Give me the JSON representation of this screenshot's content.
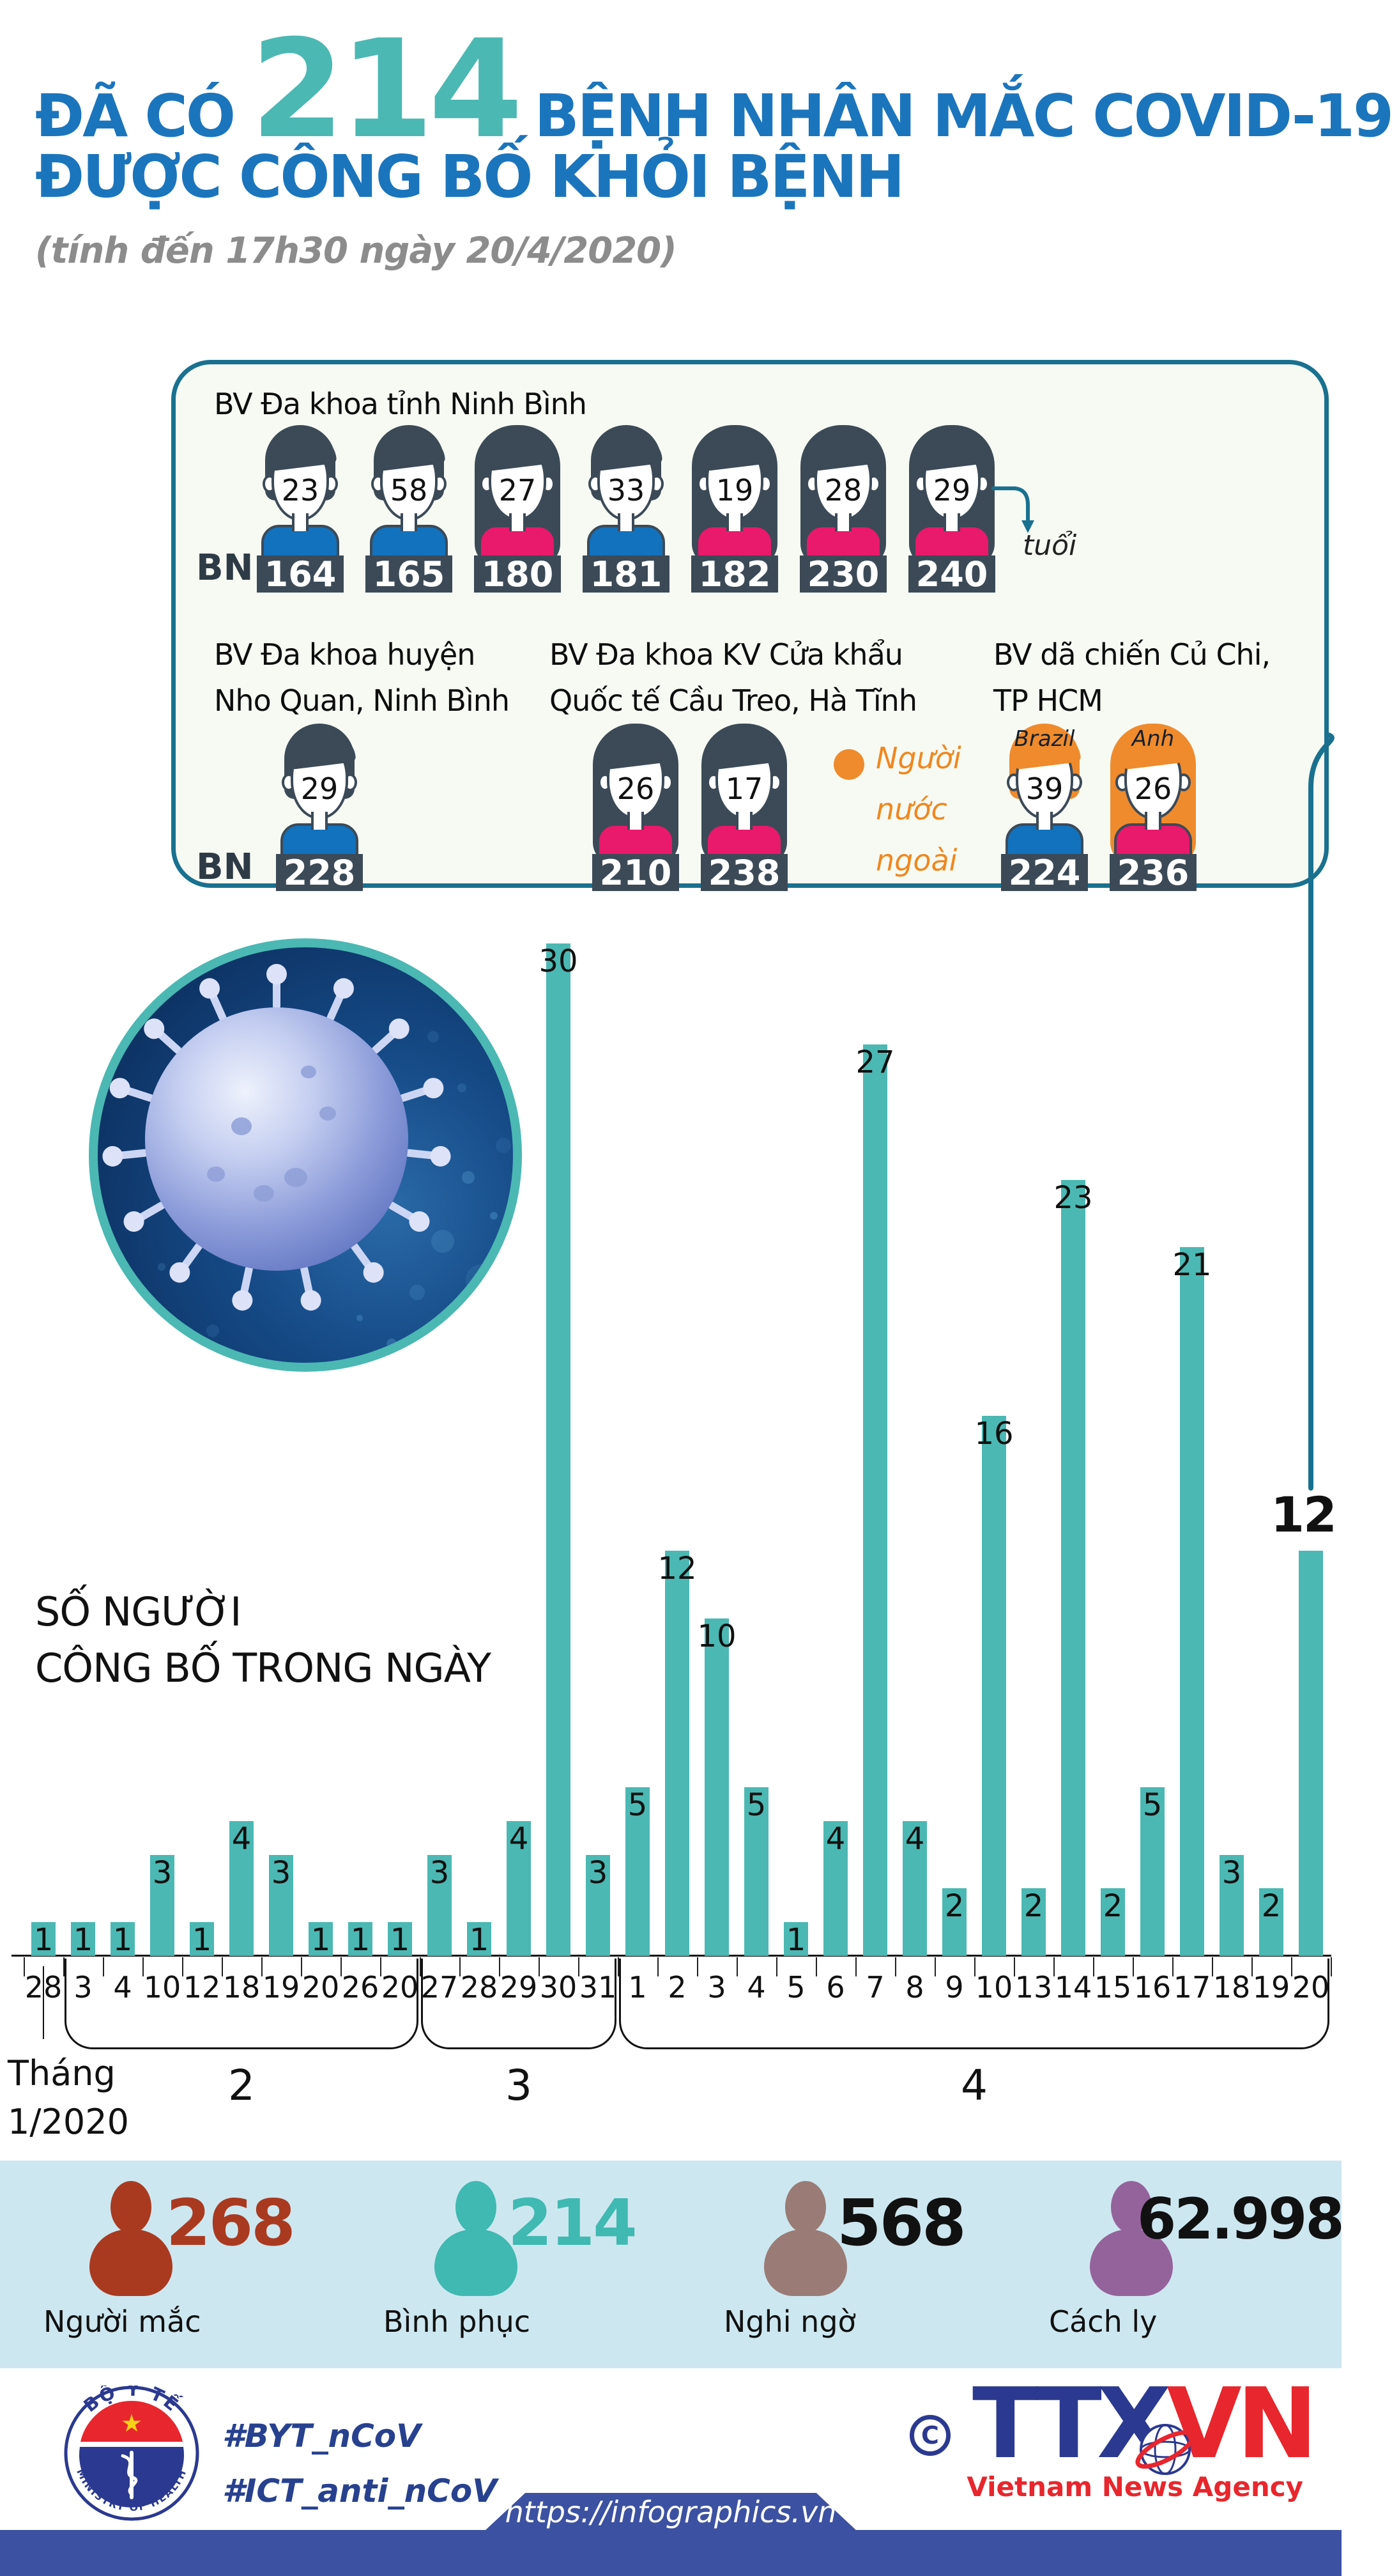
{
  "header": {
    "prefix": "ĐÃ CÓ",
    "highlight": "214",
    "suffix": "BỆNH NHÂN MẮC COVID-19",
    "line2": "ĐƯỢC CÔNG BỐ KHỎI BỆNH",
    "subtitle": "(tính đến 17h30 ngày 20/4/2020)"
  },
  "colors": {
    "accent_teal": "#4BB8B3",
    "title_blue": "#1B75BC",
    "box_border": "#19718F",
    "bar": "#4BB8B3",
    "slate": "#3C4A57",
    "shirt_blue": "#1272BD",
    "shirt_pink": "#E9196B",
    "foreign_orange": "#EF8B2D",
    "legend_orange": "#F0871F",
    "band_bg": "#CDE7F0",
    "footer_bar": "#3C51A1",
    "ttx_blue": "#2B3990",
    "ttx_red": "#E8262D"
  },
  "hospital_box": {
    "bn_label": "BN",
    "age_label": "tuổi",
    "foreign_legend_lines": [
      "Người",
      "nước",
      "ngoài"
    ],
    "groups": [
      {
        "name_lines": [
          "BV Đa khoa tỉnh Ninh Bình"
        ],
        "patients": [
          {
            "age": "23",
            "bn": "164",
            "gender": "m",
            "shirt": "blue"
          },
          {
            "age": "58",
            "bn": "165",
            "gender": "m",
            "shirt": "blue"
          },
          {
            "age": "27",
            "bn": "180",
            "gender": "f",
            "shirt": "pink"
          },
          {
            "age": "33",
            "bn": "181",
            "gender": "m",
            "shirt": "blue"
          },
          {
            "age": "19",
            "bn": "182",
            "gender": "f",
            "shirt": "pink"
          },
          {
            "age": "28",
            "bn": "230",
            "gender": "f",
            "shirt": "pink"
          },
          {
            "age": "29",
            "bn": "240",
            "gender": "f",
            "shirt": "pink"
          }
        ]
      },
      {
        "name_lines": [
          "BV Đa khoa huyện",
          "Nho Quan, Ninh Bình"
        ],
        "patients": [
          {
            "age": "29",
            "bn": "228",
            "gender": "m",
            "shirt": "blue"
          }
        ]
      },
      {
        "name_lines": [
          "BV Đa khoa KV Cửa khẩu",
          "Quốc tế Cầu Treo, Hà Tĩnh"
        ],
        "patients": [
          {
            "age": "26",
            "bn": "210",
            "gender": "f",
            "shirt": "pink"
          },
          {
            "age": "17",
            "bn": "238",
            "gender": "f",
            "shirt": "pink"
          }
        ]
      },
      {
        "name_lines": [
          "BV dã chiến Củ Chi,",
          "TP HCM"
        ],
        "patients": [
          {
            "age": "39",
            "bn": "224",
            "gender": "m",
            "shirt": "blue",
            "foreign": "Brazil"
          },
          {
            "age": "26",
            "bn": "236",
            "gender": "f",
            "shirt": "pink",
            "foreign": "Anh"
          }
        ]
      }
    ]
  },
  "chart_data": {
    "type": "bar",
    "title_lines": [
      "SỐ NGƯỜI",
      "CÔNG BỐ TRONG NGÀY"
    ],
    "x_labels": [
      "28",
      "3",
      "4",
      "10",
      "12",
      "18",
      "19",
      "20",
      "26",
      "20",
      "27",
      "28",
      "29",
      "30",
      "31",
      "1",
      "2",
      "3",
      "4",
      "5",
      "6",
      "7",
      "8",
      "9",
      "10",
      "13",
      "14",
      "15",
      "16",
      "17",
      "18",
      "19",
      "20"
    ],
    "values": [
      1,
      1,
      1,
      3,
      1,
      4,
      3,
      1,
      1,
      1,
      3,
      1,
      4,
      30,
      3,
      5,
      12,
      10,
      5,
      1,
      4,
      27,
      4,
      2,
      16,
      2,
      23,
      2,
      5,
      21,
      3,
      2,
      12
    ],
    "month_groups": [
      {
        "label": "Tháng",
        "label2": "1/2020",
        "start": 0,
        "end": 0,
        "bracket": false
      },
      {
        "label": "2",
        "start": 1,
        "end": 9,
        "bracket": true
      },
      {
        "label": "3",
        "start": 10,
        "end": 14,
        "bracket": true
      },
      {
        "label": "4",
        "start": 15,
        "end": 32,
        "bracket": true
      }
    ],
    "ylim": [
      0,
      30
    ],
    "grid": false,
    "legend": "none",
    "bar_color": "#4BB8B3",
    "highlight_last_value": "12"
  },
  "stats": {
    "items": [
      {
        "value": "268",
        "label": "Người mắc",
        "icon_color": "#A93A20",
        "value_color": "#A93A20"
      },
      {
        "value": "214",
        "label": "Bình phục",
        "icon_color": "#3FB9B1",
        "value_color": "#3FB9B1"
      },
      {
        "value": "568",
        "label": "Nghi ngờ",
        "icon_color": "#9A7B76",
        "value_color": "#111111"
      },
      {
        "value": "62.998",
        "label": "Cách ly",
        "icon_color": "#95639B",
        "value_color": "#111111"
      }
    ]
  },
  "footer": {
    "hashtags": [
      "#BYT_nCoV",
      "#ICT_anti_nCoV"
    ],
    "copyright": "C",
    "agency_acronym_blue": "TTX",
    "agency_acronym_red": "VN",
    "agency_name": "Vietnam News Agency",
    "moh_top": "BỘ Y TẾ",
    "moh_bottom": "MINISTRY OF HEALTH",
    "url": "https://infographics.vn"
  }
}
